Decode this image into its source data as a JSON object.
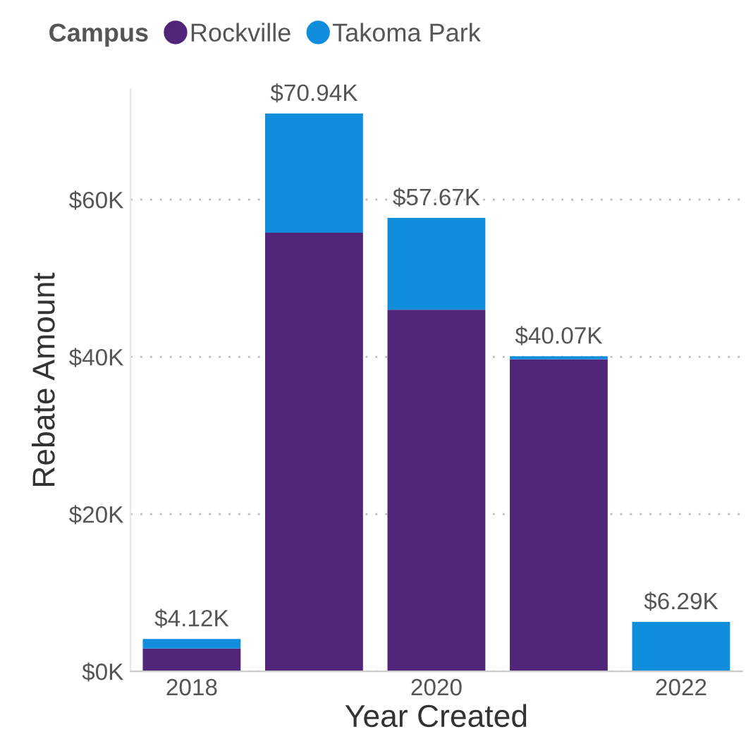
{
  "chart_data": {
    "type": "bar",
    "stacked": true,
    "xlabel": "Year Created",
    "ylabel": "Rebate Amount",
    "legend_title": "Campus",
    "legend": "top left",
    "categories": [
      "2018",
      null,
      "2020",
      null,
      "2022"
    ],
    "series": [
      {
        "name": "Rockville",
        "color": "#512579",
        "values": [
          2.9,
          55.8,
          46.0,
          39.7,
          0
        ]
      },
      {
        "name": "Takoma Park",
        "color": "#118dde",
        "values": [
          1.22,
          15.14,
          11.67,
          0.37,
          6.29
        ]
      }
    ],
    "totals": [
      "$4.12K",
      "$70.94K",
      "$57.67K",
      "$40.07K",
      "$6.29K"
    ],
    "ylim": [
      0,
      74
    ],
    "yticks": [
      {
        "value": 0,
        "label": "$0K"
      },
      {
        "value": 20,
        "label": "$20K"
      },
      {
        "value": 40,
        "label": "$40K"
      },
      {
        "value": 60,
        "label": "$60K"
      }
    ],
    "grid": "y"
  }
}
